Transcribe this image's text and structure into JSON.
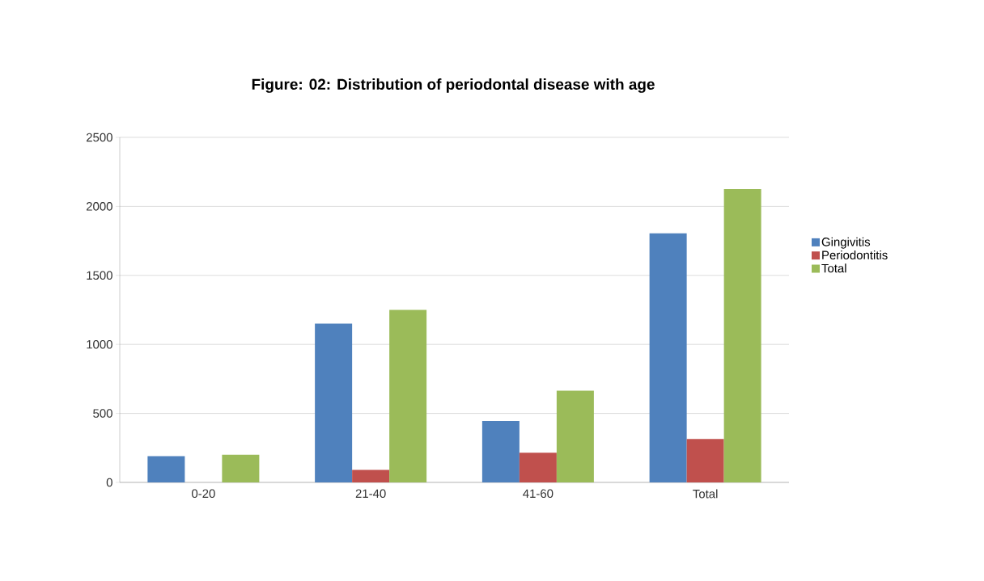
{
  "chart_data": {
    "type": "bar",
    "title": "Figure: 02: Distribution of periodontal disease with age",
    "categories": [
      "0-20",
      "21-40",
      "41-60",
      "Total"
    ],
    "series": [
      {
        "name": "Gingivitis",
        "color": "#4f81bd",
        "values": [
          190,
          1150,
          445,
          1805
        ]
      },
      {
        "name": "Periodontitis",
        "color": "#c0504d",
        "values": [
          null,
          90,
          215,
          315
        ]
      },
      {
        "name": "Total",
        "color": "#9bbb59",
        "values": [
          200,
          1250,
          665,
          2125
        ]
      }
    ],
    "ylim": [
      0,
      2500
    ],
    "yticks": [
      0,
      500,
      1000,
      1500,
      2000,
      2500
    ],
    "grid": "y",
    "legend": "right"
  }
}
